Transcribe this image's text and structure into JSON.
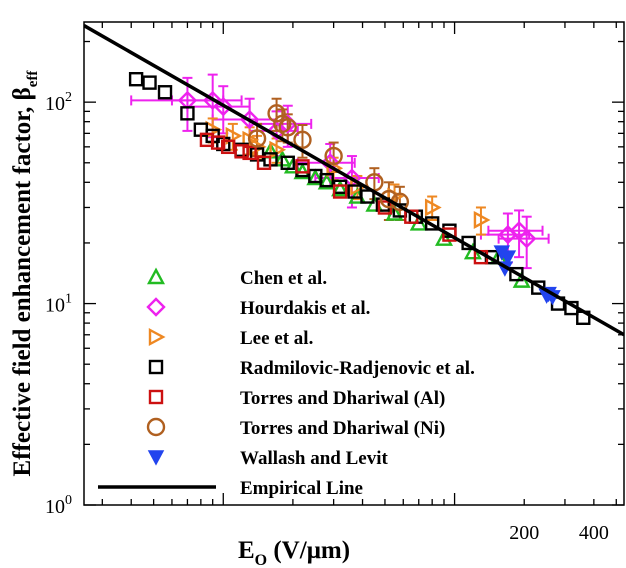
{
  "chart_data": {
    "type": "scatter",
    "title": "",
    "xlabel": {
      "main": "E",
      "sub": "O",
      "units_prefix": " (V/",
      "mu": "μ",
      "units_suffix": "m)"
    },
    "ylabel": {
      "main": "Effective field enhancement factor, ",
      "beta": "β",
      "sub": "eff"
    },
    "x_scale": "log",
    "y_scale": "log",
    "xlim": [
      2.5,
      540
    ],
    "ylim": [
      1,
      250
    ],
    "x_ticks": [
      {
        "value": 200,
        "label": "200"
      },
      {
        "value": 400,
        "label": "400"
      }
    ],
    "y_ticks": [
      {
        "value": 1,
        "label": "10",
        "exp": "0"
      },
      {
        "value": 10,
        "label": "10",
        "exp": "1"
      },
      {
        "value": 100,
        "label": "10",
        "exp": "2"
      }
    ],
    "grid": false,
    "legend_position": "lower-left",
    "series": [
      {
        "name": "Chen et al.",
        "marker": "triangle-up",
        "color": "#22bb22",
        "points": [
          [
            16,
            57
          ],
          [
            18,
            52
          ],
          [
            20,
            48
          ],
          [
            22,
            45
          ],
          [
            25,
            42
          ],
          [
            28,
            40
          ],
          [
            32,
            37
          ],
          [
            38,
            34
          ],
          [
            45,
            31
          ],
          [
            55,
            28
          ],
          [
            70,
            25
          ],
          [
            90,
            21
          ],
          [
            120,
            18
          ],
          [
            155,
            17
          ],
          [
            195,
            13
          ]
        ]
      },
      {
        "name": "Hourdakis et al.",
        "marker": "diamond",
        "color": "#ee22ee",
        "points": [
          [
            7,
            102
          ],
          [
            9,
            102
          ],
          [
            10,
            95
          ],
          [
            13,
            82
          ],
          [
            17,
            72
          ],
          [
            19,
            78
          ],
          [
            29,
            50
          ],
          [
            36,
            42
          ],
          [
            190,
            23
          ],
          [
            205,
            21
          ],
          [
            170,
            22
          ]
        ],
        "xerr": [
          3,
          3,
          3,
          4,
          4,
          5,
          8,
          11,
          50,
          50,
          40
        ],
        "yerr": [
          30,
          35,
          25,
          22,
          18,
          18,
          12,
          12,
          6,
          6,
          6
        ]
      },
      {
        "name": "Lee et al.",
        "marker": "triangle-right",
        "color": "#ee8822",
        "points": [
          [
            9,
            73
          ],
          [
            11,
            68
          ],
          [
            13,
            65
          ],
          [
            14,
            60
          ],
          [
            17,
            58
          ],
          [
            30,
            47
          ],
          [
            38,
            38
          ],
          [
            55,
            34
          ],
          [
            80,
            30
          ],
          [
            130,
            26
          ]
        ],
        "yerr": [
          10,
          10,
          10,
          8,
          8,
          6,
          5,
          5,
          4,
          4
        ]
      },
      {
        "name": "Radmilovic-Radjenovic et al.",
        "marker": "square",
        "color": "#000000",
        "points": [
          [
            4.2,
            130
          ],
          [
            4.8,
            125
          ],
          [
            5.6,
            112
          ],
          [
            7,
            88
          ],
          [
            8,
            73
          ],
          [
            9,
            68
          ],
          [
            10,
            62
          ],
          [
            12,
            58
          ],
          [
            14,
            55
          ],
          [
            16,
            52
          ],
          [
            19,
            50
          ],
          [
            22,
            46
          ],
          [
            25,
            43
          ],
          [
            28,
            41
          ],
          [
            32,
            38
          ],
          [
            37,
            36
          ],
          [
            42,
            34
          ],
          [
            49,
            31
          ],
          [
            58,
            29
          ],
          [
            68,
            27
          ],
          [
            80,
            25
          ],
          [
            95,
            23
          ],
          [
            115,
            20
          ],
          [
            145,
            17
          ],
          [
            185,
            14
          ],
          [
            230,
            12
          ],
          [
            280,
            10
          ],
          [
            320,
            9.5
          ],
          [
            360,
            8.5
          ]
        ]
      },
      {
        "name": "Torres and Dhariwal (Al)",
        "marker": "square",
        "color": "#cc1111",
        "points": [
          [
            8.5,
            65
          ],
          [
            9.5,
            63
          ],
          [
            10.5,
            60
          ],
          [
            12,
            57
          ],
          [
            13,
            56
          ],
          [
            15,
            50
          ],
          [
            22,
            48
          ],
          [
            32,
            36
          ],
          [
            50,
            30
          ],
          [
            65,
            27
          ],
          [
            95,
            22
          ],
          [
            130,
            17
          ]
        ]
      },
      {
        "name": "Torres and Dhariwal (Ni)",
        "marker": "circle",
        "color": "#b06020",
        "points": [
          [
            17,
            88
          ],
          [
            18,
            78
          ],
          [
            14,
            66
          ],
          [
            19,
            75
          ],
          [
            22,
            65
          ],
          [
            30,
            54
          ],
          [
            45,
            40
          ],
          [
            52,
            33
          ],
          [
            58,
            32
          ]
        ],
        "yerr": [
          16,
          14,
          12,
          12,
          12,
          9,
          7,
          7,
          6
        ]
      },
      {
        "name": "Wallash and Levit",
        "marker": "triangle-down",
        "color": "#2244ee",
        "points": [
          [
            160,
            18
          ],
          [
            170,
            17
          ],
          [
            165,
            15
          ],
          [
            250,
            11
          ],
          [
            265,
            10.8
          ],
          [
            255,
            11.2
          ]
        ]
      },
      {
        "name": "Empirical Line",
        "marker": "line",
        "color": "#000000",
        "line": [
          [
            2.5,
            240
          ],
          [
            540,
            7
          ]
        ]
      }
    ]
  }
}
